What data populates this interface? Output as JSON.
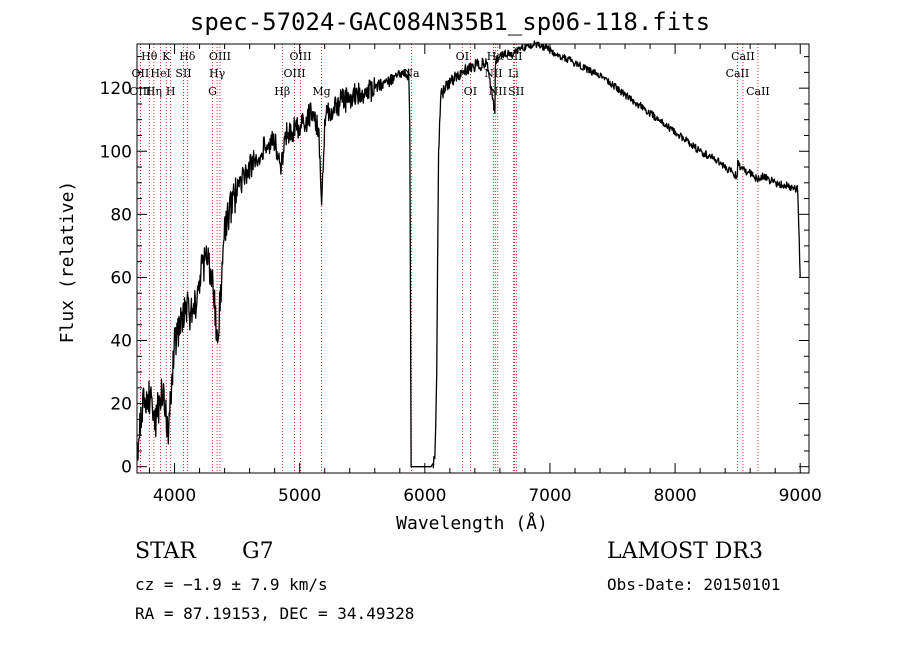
{
  "header": {
    "title": "spec-57024-GAC084N35B1_sp06-118.fits"
  },
  "info": {
    "class": "STAR",
    "subclass": "G7",
    "survey": "LAMOST DR3",
    "cz": "cz = −1.9 ± 7.9 km/s",
    "obs_date": "Obs-Date: 20150101",
    "coords": "RA =  87.19153, DEC =  34.49328"
  },
  "chart_data": {
    "type": "line",
    "title": "spec-57024-GAC084N35B1_sp06-118.fits",
    "xlabel": "Wavelength (Å)",
    "ylabel": "Flux (relative)",
    "xlim": [
      3700,
      9070
    ],
    "ylim": [
      -2,
      134
    ],
    "x_ticks": [
      4000,
      5000,
      6000,
      7000,
      8000,
      9000
    ],
    "y_ticks": [
      0,
      20,
      40,
      60,
      80,
      100,
      120
    ],
    "x_tick_labels": [
      "4000",
      "5000",
      "6000",
      "7000",
      "8000",
      "9000"
    ],
    "y_tick_labels": [
      "0",
      "20",
      "40",
      "60",
      "80",
      "100",
      "120"
    ],
    "grid": false,
    "series": [
      {
        "name": "flux",
        "color": "#000000",
        "x": [
          3700,
          3750,
          3800,
          3850,
          3900,
          3950,
          4000,
          4050,
          4100,
          4150,
          4200,
          4250,
          4300,
          4340,
          4400,
          4500,
          4600,
          4700,
          4800,
          4850,
          4900,
          5000,
          5100,
          5150,
          5175,
          5200,
          5300,
          5400,
          5500,
          5600,
          5700,
          5800,
          5870,
          5880,
          5885,
          5890,
          5895,
          5900,
          5950,
          6050,
          6080,
          6095,
          6110,
          6130,
          6200,
          6300,
          6400,
          6500,
          6560,
          6563,
          6570,
          6600,
          6650,
          6700,
          6750,
          6800,
          6900,
          7000,
          7100,
          7200,
          7300,
          7400,
          7500,
          7600,
          7700,
          7800,
          7900,
          8000,
          8100,
          8200,
          8300,
          8400,
          8498,
          8500,
          8542,
          8600,
          8662,
          8700,
          8800,
          8900,
          8980,
          9000
        ],
        "y": [
          5,
          20,
          22,
          15,
          25,
          10,
          40,
          45,
          50,
          48,
          60,
          65,
          62,
          38,
          75,
          88,
          95,
          100,
          104,
          96,
          106,
          108,
          112,
          108,
          82,
          110,
          115,
          117,
          118,
          120,
          122,
          124,
          124,
          110,
          60,
          0,
          0,
          0,
          0,
          0,
          2,
          30,
          100,
          118,
          122,
          125,
          127,
          128,
          112,
          126,
          129,
          130,
          131,
          131,
          132,
          133,
          134,
          132,
          130,
          128,
          126,
          124,
          121,
          118,
          115,
          112,
          109,
          106,
          103,
          100,
          98,
          95,
          92,
          96,
          94,
          93,
          91,
          92,
          90,
          89,
          88,
          60
        ]
      }
    ],
    "spectral_lines": [
      {
        "name": "Hθ",
        "wave": 3798,
        "row": 0
      },
      {
        "name": "OII",
        "wave": 3727,
        "row": 1
      },
      {
        "name": "OIII",
        "wave": 3727,
        "row": 2
      },
      {
        "name": "K",
        "wave": 3934,
        "row": 0
      },
      {
        "name": "HeI",
        "wave": 3889,
        "row": 1
      },
      {
        "name": "Hη",
        "wave": 3835,
        "row": 2
      },
      {
        "name": "SII",
        "wave": 4072,
        "row": 1
      },
      {
        "name": "H",
        "wave": 3969,
        "row": 2
      },
      {
        "name": "Hδ",
        "wave": 4102,
        "row": 0
      },
      {
        "name": "OIII",
        "wave": 4363,
        "row": 0
      },
      {
        "name": "Hγ",
        "wave": 4340,
        "row": 1
      },
      {
        "name": "G",
        "wave": 4304,
        "row": 2
      },
      {
        "name": "Hβ",
        "wave": 4861,
        "row": 2
      },
      {
        "name": "OIII",
        "wave": 5007,
        "row": 0
      },
      {
        "name": "OIII",
        "wave": 4959,
        "row": 1
      },
      {
        "name": "Mg",
        "wave": 5175,
        "row": 2
      },
      {
        "name": "Na",
        "wave": 5893,
        "row": 1
      },
      {
        "name": "OI",
        "wave": 6300,
        "row": 0
      },
      {
        "name": "OI",
        "wave": 6364,
        "row": 2
      },
      {
        "name": "Hα",
        "wave": 6563,
        "row": 0
      },
      {
        "name": "NII",
        "wave": 6548,
        "row": 1
      },
      {
        "name": "NII",
        "wave": 6583,
        "row": 2
      },
      {
        "name": "SII",
        "wave": 6716,
        "row": 0
      },
      {
        "name": "Li",
        "wave": 6708,
        "row": 1
      },
      {
        "name": "SII",
        "wave": 6731,
        "row": 2
      },
      {
        "name": "CaII",
        "wave": 8542,
        "row": 0
      },
      {
        "name": "CaII",
        "wave": 8498,
        "row": 1
      },
      {
        "name": "CaII",
        "wave": 8662,
        "row": 2
      }
    ],
    "line_color": "#c00000"
  }
}
